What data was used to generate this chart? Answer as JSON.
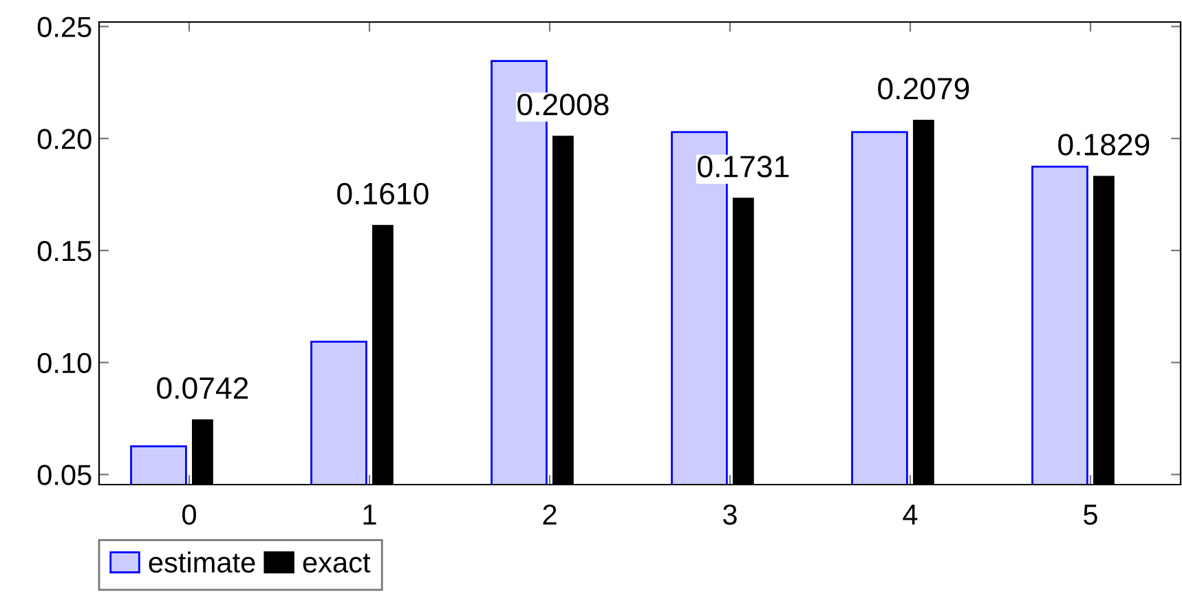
{
  "chart_data": {
    "type": "bar",
    "categories": [
      "0",
      "1",
      "2",
      "3",
      "4",
      "5"
    ],
    "series": [
      {
        "name": "estimate",
        "color": "#ccccff",
        "values": [
          0.0626,
          0.1093,
          0.2346,
          0.2029,
          0.2029,
          0.1874
        ]
      },
      {
        "name": "exact",
        "color": "#000000",
        "values": [
          0.0742,
          0.161,
          0.2008,
          0.1731,
          0.2079,
          0.1829
        ],
        "value_labels": [
          "0.0742",
          "0.1610",
          "0.2008",
          "0.1731",
          "0.2079",
          "0.1829"
        ]
      }
    ],
    "ylim": [
      0.0455,
      0.252
    ],
    "yticks": [
      {
        "value": 0.05,
        "label": "0.05"
      },
      {
        "value": 0.1,
        "label": "0.10"
      },
      {
        "value": 0.15,
        "label": "0.15"
      },
      {
        "value": 0.2,
        "label": "0.20"
      },
      {
        "value": 0.25,
        "label": "0.25"
      }
    ],
    "grid": false,
    "legend": "bottom left"
  }
}
